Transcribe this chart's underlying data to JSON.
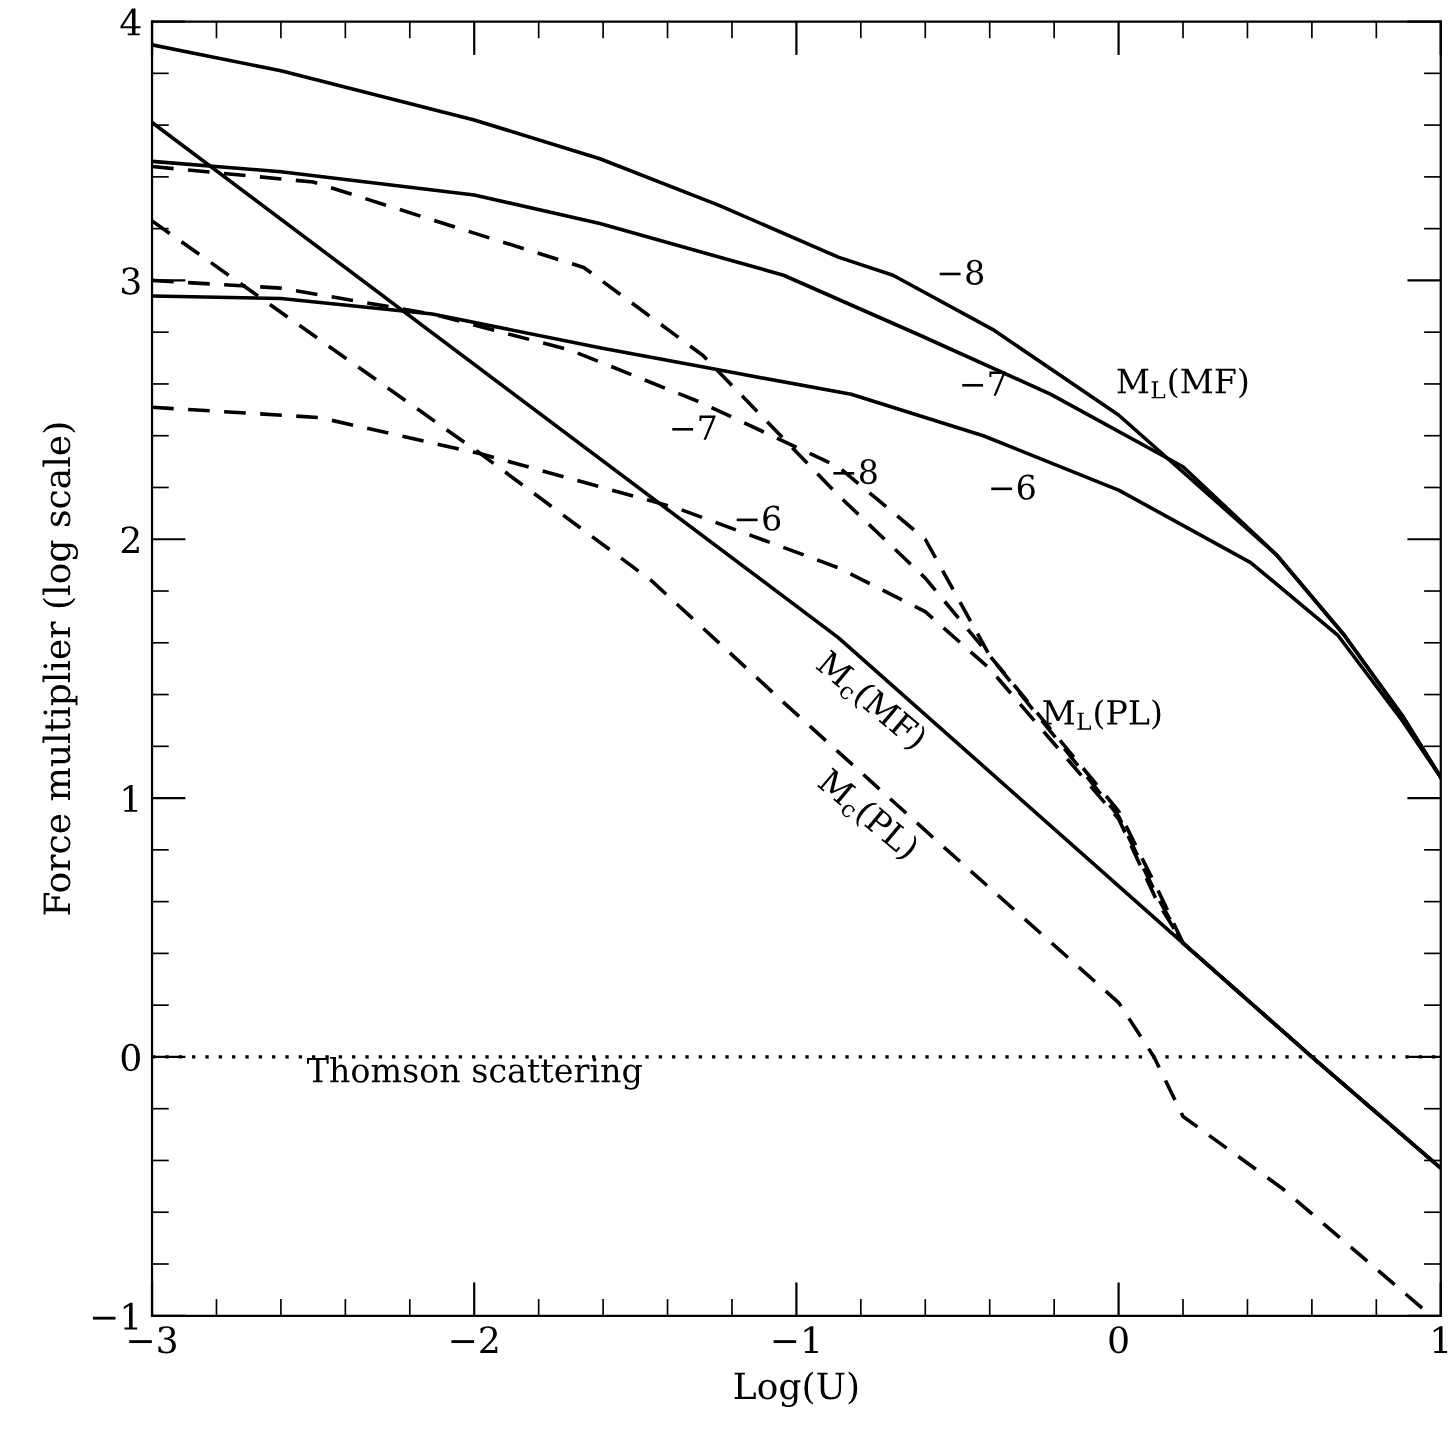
{
  "chart_data": {
    "type": "line",
    "xlabel": "Log(U)",
    "ylabel": "Force multiplier (log scale)",
    "xlim": [
      -3,
      1
    ],
    "ylim": [
      -1,
      4
    ],
    "xticks": [
      -3,
      -2,
      -1,
      0,
      1
    ],
    "yticks": [
      -1,
      0,
      1,
      2,
      3,
      4
    ],
    "grid": false,
    "legend": false,
    "marker": "none",
    "series": [
      {
        "name": "−8",
        "color": "#000000",
        "line_style": "solid",
        "x": [
          -3,
          -2.6,
          -2.0,
          -1.61,
          -1.24,
          -0.87,
          -0.7,
          -0.39,
          0.0,
          0.49,
          0.7,
          0.88,
          1.0
        ],
        "values": [
          3.91,
          3.81,
          3.62,
          3.47,
          3.29,
          3.09,
          3.02,
          2.81,
          2.48,
          1.94,
          1.63,
          1.32,
          1.08
        ]
      },
      {
        "name": "−7",
        "color": "#000000",
        "line_style": "solid",
        "x": [
          -3,
          -2.6,
          -2.0,
          -1.61,
          -1.04,
          -0.62,
          -0.21,
          0.2,
          0.49,
          0.7,
          0.88,
          1.0
        ],
        "values": [
          3.46,
          3.42,
          3.33,
          3.22,
          3.02,
          2.79,
          2.56,
          2.28,
          1.94,
          1.63,
          1.32,
          1.08
        ]
      },
      {
        "name": "−6",
        "color": "#000000",
        "line_style": "solid",
        "x": [
          -3,
          -2.6,
          -2.13,
          -1.61,
          -1.18,
          -0.83,
          -0.42,
          0.0,
          0.41,
          0.68,
          0.88,
          1.0
        ],
        "values": [
          2.94,
          2.93,
          2.87,
          2.74,
          2.64,
          2.56,
          2.4,
          2.19,
          1.91,
          1.63,
          1.3,
          1.08
        ]
      },
      {
        "name": "M$_{c}$(MF)",
        "color": "#000000",
        "line_style": "solid",
        "x": [
          -3,
          -0.87,
          0.2,
          0.6,
          1.0
        ],
        "values": [
          3.61,
          1.62,
          0.44,
          0.0,
          -0.43
        ]
      },
      {
        "name": "−8",
        "color": "#000000",
        "line_style": "dashed",
        "x": [
          -3,
          -2.5,
          -2.07,
          -1.66,
          -1.29,
          -0.87,
          -0.6,
          -0.4,
          0.0,
          0.12,
          0.2,
          0.6,
          1.0
        ],
        "values": [
          3.44,
          3.38,
          3.21,
          3.05,
          2.71,
          2.17,
          1.85,
          1.55,
          0.95,
          0.65,
          0.44,
          0.0,
          -0.43
        ]
      },
      {
        "name": "−7",
        "color": "#000000",
        "line_style": "dashed",
        "x": [
          -3,
          -2.6,
          -2.13,
          -1.7,
          -1.3,
          -0.87,
          -0.6,
          -0.4,
          0.0,
          0.12,
          0.2,
          0.6,
          1.0
        ],
        "values": [
          3.0,
          2.97,
          2.87,
          2.73,
          2.53,
          2.28,
          2.0,
          1.55,
          0.93,
          0.62,
          0.44,
          0.0,
          -0.43
        ]
      },
      {
        "name": "−6",
        "color": "#000000",
        "line_style": "dashed",
        "x": [
          -3,
          -2.48,
          -1.98,
          -1.37,
          -0.87,
          -0.6,
          -0.4,
          0.0,
          0.12,
          0.2,
          0.6,
          1.0
        ],
        "values": [
          2.51,
          2.47,
          2.33,
          2.12,
          1.89,
          1.72,
          1.5,
          0.92,
          0.6,
          0.44,
          0.0,
          -0.43
        ]
      },
      {
        "name": "M$_{c}$(PL)",
        "color": "#000000",
        "line_style": "dashed",
        "x": [
          -3,
          -1.98,
          -1.45,
          -1.04,
          -0.56,
          0.0,
          0.11,
          0.2,
          0.51,
          0.97
        ],
        "values": [
          3.23,
          2.33,
          1.84,
          1.37,
          0.83,
          0.21,
          0.0,
          -0.23,
          -0.51,
          -1.0
        ]
      }
    ],
    "ref_lines": [
      {
        "axis": "y",
        "value": 0,
        "label": "Thomson scattering",
        "line_style": "dotted",
        "color": "#000000"
      }
    ],
    "annotations": [
      "M$_{L}$(MF)",
      "M$_{L}$(PL)"
    ]
  }
}
